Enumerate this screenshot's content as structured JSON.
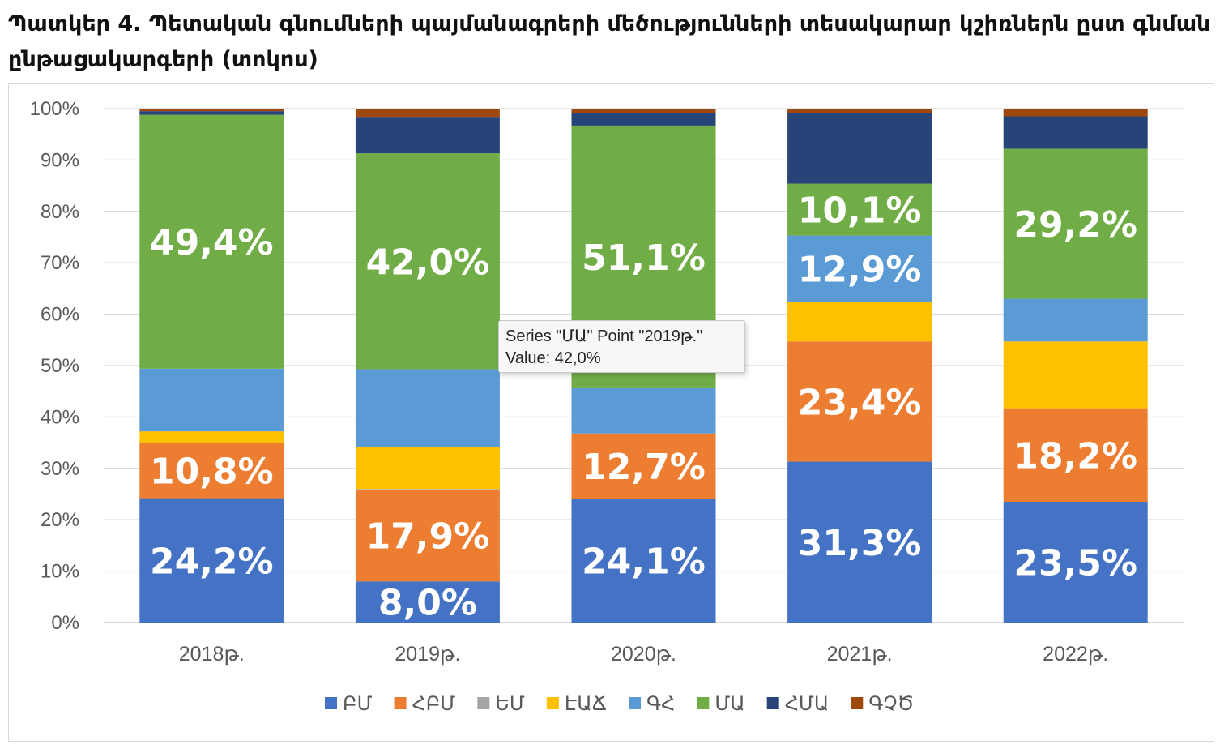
{
  "title": "Պատկեր 4. Պետական գնումների պայմանագրերի մեծությունների տեսակարար կշիռներն ըստ գնման ընթացակարգերի (տոկոս)",
  "chart_data": {
    "type": "bar",
    "stacked": true,
    "categories": [
      "2018թ.",
      "2019թ.",
      "2020թ.",
      "2021թ.",
      "2022թ."
    ],
    "ylim": [
      0,
      100
    ],
    "yticks": [
      0,
      10,
      20,
      30,
      40,
      50,
      60,
      70,
      80,
      90,
      100
    ],
    "ytick_labels": [
      "0%",
      "10%",
      "20%",
      "30%",
      "40%",
      "50%",
      "60%",
      "70%",
      "80%",
      "90%",
      "100%"
    ],
    "grid": true,
    "legend_position": "bottom",
    "series": [
      {
        "name": "ԲՄ",
        "color": "#4472C4",
        "values": [
          24.2,
          8.0,
          24.1,
          31.3,
          23.5
        ],
        "labels": [
          "24,2%",
          "8,0%",
          "24,1%",
          "31,3%",
          "23,5%"
        ]
      },
      {
        "name": "ՀԲՄ",
        "color": "#ED7D31",
        "values": [
          10.8,
          17.9,
          12.7,
          23.4,
          18.2
        ],
        "labels": [
          "10,8%",
          "17,9%",
          "12,7%",
          "23,4%",
          "18,2%"
        ]
      },
      {
        "name": "ԵՄ",
        "color": "#A5A5A5",
        "values": [
          0,
          0.1,
          0,
          0,
          0
        ],
        "labels": [
          "",
          "",
          "",
          "",
          ""
        ]
      },
      {
        "name": "ԷԱՃ",
        "color": "#FFC000",
        "values": [
          2.2,
          8.1,
          0,
          7.7,
          13.0
        ],
        "labels": [
          "",
          "",
          "",
          "",
          ""
        ]
      },
      {
        "name": "ԳՀ",
        "color": "#5B9BD5",
        "values": [
          12.2,
          15.2,
          8.8,
          12.9,
          8.3
        ],
        "labels": [
          "",
          "",
          "",
          "12,9%",
          ""
        ]
      },
      {
        "name": "ՄԱ",
        "color": "#70AD47",
        "values": [
          49.4,
          42.0,
          51.1,
          10.1,
          29.2
        ],
        "labels": [
          "49,4%",
          "42,0%",
          "51,1%",
          "10,1%",
          "29,2%"
        ]
      },
      {
        "name": "ՀՄԱ",
        "color": "#264478",
        "values": [
          0.7,
          7.1,
          2.5,
          13.7,
          6.3
        ],
        "labels": [
          "",
          "",
          "",
          "",
          ""
        ]
      },
      {
        "name": "ԳՉԾ",
        "color": "#9E480E",
        "values": [
          0.5,
          1.6,
          0.8,
          0.9,
          1.5
        ],
        "labels": [
          "",
          "",
          "",
          "",
          ""
        ]
      }
    ]
  },
  "tooltip": {
    "line1": "Series \"ՄԱ\" Point \"2019թ.\"",
    "line2": "Value: 42,0%"
  }
}
